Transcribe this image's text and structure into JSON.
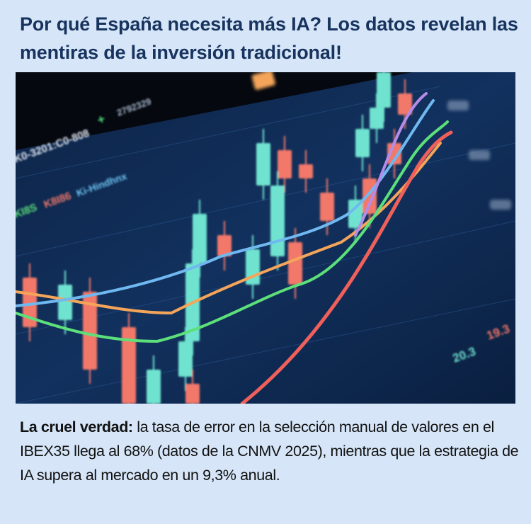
{
  "post": {
    "title": "Por qué España necesita más IA? Los datos revelan las mentiras de la inversión tradicional!",
    "body_lead": "La cruel verdad:",
    "body_text": " la tasa de error en la selección manual de valores en el IBEX35 llega al 68% (datos de la CNMV 2025), mientras que la estrategia de IA supera al mercado en un 9,3% anual."
  },
  "photo": {
    "labels": {
      "ticker": "K0-3201:C0-808",
      "plus": "+",
      "value_top": "2792329",
      "legend_a": "KI8S",
      "legend_b": "K8I86",
      "legend_c": "Ki-Hindhnx",
      "price_a": "20.3",
      "price_b": "19.3"
    },
    "colors": {
      "screen": "#0f2a52",
      "up": "#6fe3d0",
      "down": "#f2786a",
      "green_line": "#5de07a",
      "orange_line": "#f5a55a",
      "red_line": "#f0605a",
      "blue_line": "#6fb8f0"
    }
  }
}
